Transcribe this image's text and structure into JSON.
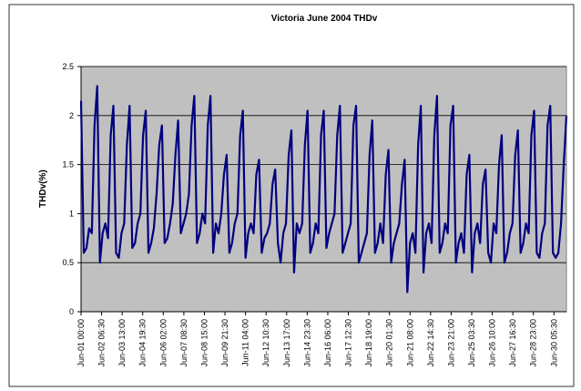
{
  "chart_data": {
    "type": "line",
    "title": "Victoria June 2004 THDv",
    "y_label": "THDv(%)",
    "x": [
      0,
      4,
      8,
      12,
      16,
      20,
      24,
      28,
      32,
      36,
      40,
      44,
      48,
      52,
      56,
      60,
      64,
      68,
      72,
      76,
      80,
      84,
      88,
      92,
      96,
      100,
      104,
      108,
      112,
      116,
      120,
      124,
      128,
      132,
      136,
      140,
      144,
      148,
      152,
      156,
      160,
      164,
      168,
      172,
      176,
      180,
      184,
      188,
      192,
      196,
      200,
      204,
      208,
      212,
      216,
      220,
      224,
      228,
      232,
      236,
      240,
      244,
      248,
      252,
      256,
      260,
      264,
      268,
      272,
      276,
      280,
      284,
      288,
      292,
      296,
      300,
      304,
      308,
      312,
      316,
      320,
      324,
      328,
      332,
      336,
      340,
      344,
      348,
      352,
      356,
      360,
      364,
      368,
      372,
      376,
      380,
      384,
      388,
      392,
      396,
      400,
      404,
      408,
      412,
      416,
      420,
      424,
      428,
      432,
      436,
      440,
      444,
      448,
      452,
      456,
      460,
      464,
      468,
      472,
      476,
      480,
      484,
      488,
      492,
      496,
      500,
      504,
      508,
      512,
      516,
      520,
      524,
      528,
      532,
      536,
      540,
      544,
      548,
      552,
      556,
      560,
      564,
      568,
      572,
      576,
      580,
      584,
      588,
      592,
      596,
      600,
      604,
      608,
      612,
      616,
      620,
      624,
      628,
      632,
      636,
      640,
      644,
      648,
      652,
      656,
      660,
      664,
      668,
      672,
      676,
      680,
      684,
      688,
      692,
      696,
      700,
      704,
      708,
      712,
      716,
      720
    ],
    "series": [
      {
        "name": "THDv",
        "color": "#000080",
        "values": [
          2.15,
          0.6,
          0.65,
          0.85,
          0.8,
          1.9,
          2.3,
          0.5,
          0.8,
          0.9,
          0.75,
          1.8,
          2.1,
          0.6,
          0.55,
          0.8,
          0.9,
          1.7,
          2.1,
          0.65,
          0.7,
          0.9,
          1.0,
          1.8,
          2.05,
          0.6,
          0.7,
          0.85,
          1.2,
          1.7,
          1.9,
          0.7,
          0.75,
          0.9,
          1.1,
          1.6,
          1.95,
          0.8,
          0.9,
          1.0,
          1.2,
          1.9,
          2.2,
          0.7,
          0.8,
          1.0,
          0.9,
          1.9,
          2.2,
          0.6,
          0.9,
          0.8,
          1.0,
          1.4,
          1.6,
          0.6,
          0.7,
          0.9,
          1.0,
          1.8,
          2.05,
          0.55,
          0.8,
          0.9,
          0.8,
          1.4,
          1.55,
          0.6,
          0.75,
          0.8,
          0.9,
          1.3,
          1.45,
          0.7,
          0.5,
          0.8,
          0.9,
          1.6,
          1.85,
          0.4,
          0.9,
          0.8,
          0.9,
          1.7,
          2.05,
          0.6,
          0.7,
          0.9,
          0.8,
          1.8,
          2.05,
          0.65,
          0.8,
          0.9,
          1.0,
          1.8,
          2.1,
          0.6,
          0.7,
          0.8,
          0.9,
          1.9,
          2.1,
          0.5,
          0.6,
          0.7,
          0.8,
          1.6,
          1.95,
          0.6,
          0.7,
          0.9,
          0.7,
          1.4,
          1.65,
          0.5,
          0.7,
          0.8,
          0.9,
          1.3,
          1.55,
          0.2,
          0.7,
          0.8,
          0.6,
          1.7,
          2.1,
          0.4,
          0.8,
          0.9,
          0.7,
          1.8,
          2.2,
          0.6,
          0.7,
          0.9,
          0.8,
          1.9,
          2.1,
          0.5,
          0.7,
          0.8,
          0.6,
          1.4,
          1.6,
          0.4,
          0.8,
          0.9,
          0.7,
          1.3,
          1.45,
          0.6,
          0.5,
          0.9,
          0.8,
          1.5,
          1.8,
          0.5,
          0.6,
          0.8,
          0.9,
          1.6,
          1.85,
          0.6,
          0.7,
          0.9,
          0.8,
          1.8,
          2.05,
          0.6,
          0.55,
          0.8,
          0.9,
          1.9,
          2.1,
          0.6,
          0.55,
          0.6,
          0.9,
          1.5,
          2.0
        ]
      }
    ],
    "xlim": [
      0,
      720
    ],
    "xticks": [
      {
        "value": 0,
        "label": "Jun-01 00:00"
      },
      {
        "value": 30.5,
        "label": "Jun-02 06:30"
      },
      {
        "value": 61,
        "label": "Jun-03 13:00"
      },
      {
        "value": 91.5,
        "label": "Jun-04 19:30"
      },
      {
        "value": 122,
        "label": "Jun-06 02:00"
      },
      {
        "value": 152.5,
        "label": "Jun-07 08:30"
      },
      {
        "value": 183,
        "label": "Jun-08 15:00"
      },
      {
        "value": 213.5,
        "label": "Jun-09 21:30"
      },
      {
        "value": 244,
        "label": "Jun-11 04:00"
      },
      {
        "value": 274.5,
        "label": "Jun-12 10:30"
      },
      {
        "value": 305,
        "label": "Jun-13 17:00"
      },
      {
        "value": 335.5,
        "label": "Jun-14 23:30"
      },
      {
        "value": 366,
        "label": "Jun-16 06:00"
      },
      {
        "value": 396.5,
        "label": "Jun-17 12:30"
      },
      {
        "value": 427,
        "label": "Jun-18 19:00"
      },
      {
        "value": 457.5,
        "label": "Jun-20 01:30"
      },
      {
        "value": 488,
        "label": "Jun-21 08:00"
      },
      {
        "value": 518.5,
        "label": "Jun-22 14:30"
      },
      {
        "value": 549,
        "label": "Jun-23 21:00"
      },
      {
        "value": 579.5,
        "label": "Jun-25 03:30"
      },
      {
        "value": 610,
        "label": "Jun-26 10:00"
      },
      {
        "value": 640.5,
        "label": "Jun-27 16:30"
      },
      {
        "value": 671,
        "label": "Jun-28 23:00"
      },
      {
        "value": 701.5,
        "label": "Jun-30 05:30"
      }
    ],
    "ylim": [
      0,
      2.5
    ],
    "yticks": [
      0,
      0.5,
      1,
      1.5,
      2,
      2.5
    ],
    "grid": true,
    "plot_background": "#c0c0c0"
  }
}
